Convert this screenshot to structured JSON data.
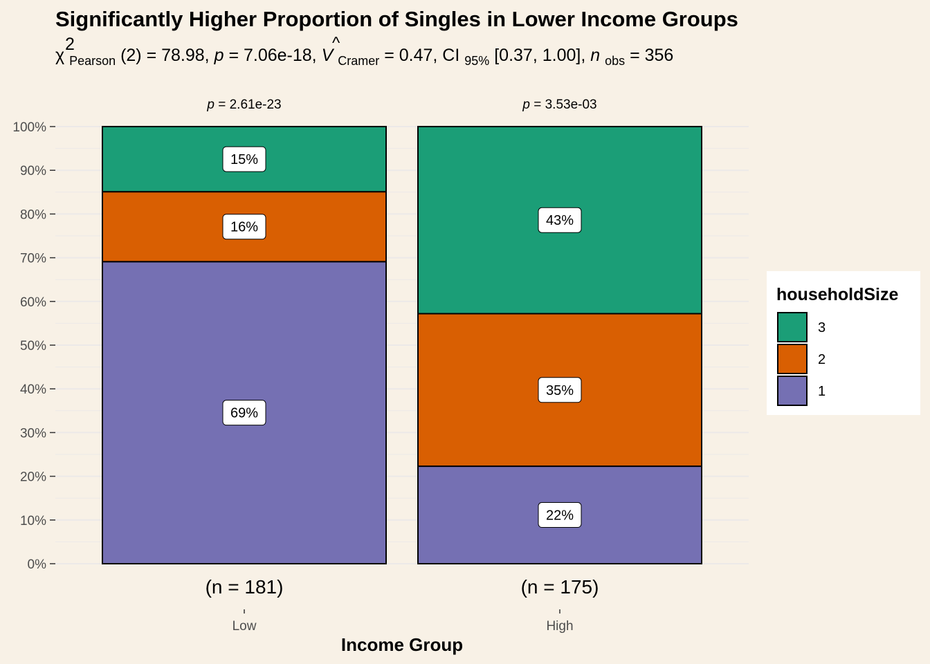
{
  "chart_data": {
    "type": "bar",
    "stacked": true,
    "percent": true,
    "title": "Significantly Higher Proportion of Singles in Lower Income Groups",
    "subtitle": {
      "chi": "χ",
      "chi_sup": "2",
      "chi_sub": "Pearson",
      "df_stat": "(2) = 78.98, ",
      "p_sym": "p",
      "p_val": " = 7.06e-18, ",
      "v_sym": "V",
      "v_hat": "^",
      "v_sub": "Cramer",
      "v_val": " = 0.47, CI",
      "ci_sub": "95%",
      "ci_val": " [0.37, 1.00], ",
      "n_sym": "n",
      "n_sub": "obs",
      "n_val": " = 356"
    },
    "xlabel": "Income Group",
    "ylabel": "",
    "ylim": [
      0,
      100
    ],
    "yticks": [
      "0%",
      "10%",
      "20%",
      "30%",
      "40%",
      "50%",
      "60%",
      "70%",
      "80%",
      "90%",
      "100%"
    ],
    "categories": [
      "Low",
      "High"
    ],
    "sample_sizes": [
      "(n = 181)",
      "(n = 175)"
    ],
    "facet_p": [
      {
        "sym": "p",
        "val": " = 2.61e-23"
      },
      {
        "sym": "p",
        "val": " = 3.53e-03"
      }
    ],
    "series": [
      {
        "name": "1",
        "color": "#7570b3",
        "values": [
          69.1,
          22.3
        ],
        "labels": [
          "69%",
          "22%"
        ]
      },
      {
        "name": "2",
        "color": "#d95f02",
        "values": [
          16.0,
          34.9
        ],
        "labels": [
          "16%",
          "35%"
        ]
      },
      {
        "name": "3",
        "color": "#1b9e77",
        "values": [
          14.9,
          42.8
        ],
        "labels": [
          "15%",
          "43%"
        ]
      }
    ],
    "legend": {
      "title": "householdSize",
      "position": "right",
      "order": [
        "3",
        "2",
        "1"
      ]
    },
    "grid": true,
    "colors": {
      "background": "#f8f1e6",
      "grid": "#ece9e8",
      "legend_bg": "#ffffff"
    }
  }
}
